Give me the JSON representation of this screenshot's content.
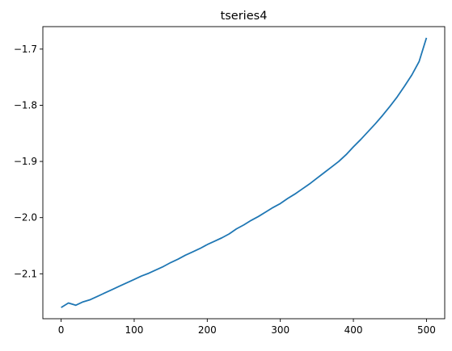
{
  "chart_data": {
    "type": "line",
    "title": "tseries4",
    "xlabel": "",
    "ylabel": "",
    "xlim": [
      -25,
      525
    ],
    "ylim": [
      -2.18,
      -1.66
    ],
    "xticks": [
      0,
      100,
      200,
      300,
      400,
      500
    ],
    "xtick_labels": [
      "0",
      "100",
      "200",
      "300",
      "400",
      "500"
    ],
    "yticks": [
      -2.1,
      -2.0,
      -1.9,
      -1.8,
      -1.7
    ],
    "ytick_labels": [
      "−2.1",
      "−2.0",
      "−1.9",
      "−1.8",
      "−1.7"
    ],
    "grid": false,
    "series": [
      {
        "color": "#1f77b4",
        "x": [
          0,
          10,
          20,
          30,
          40,
          50,
          60,
          70,
          80,
          90,
          100,
          110,
          120,
          130,
          140,
          150,
          160,
          170,
          180,
          190,
          200,
          210,
          220,
          230,
          240,
          250,
          260,
          270,
          280,
          290,
          300,
          310,
          320,
          330,
          340,
          350,
          360,
          370,
          380,
          390,
          400,
          410,
          420,
          430,
          440,
          450,
          460,
          470,
          480,
          490,
          500
        ],
        "values": [
          -2.16,
          -2.152,
          -2.156,
          -2.15,
          -2.146,
          -2.14,
          -2.134,
          -2.128,
          -2.122,
          -2.116,
          -2.11,
          -2.104,
          -2.099,
          -2.093,
          -2.087,
          -2.08,
          -2.074,
          -2.067,
          -2.061,
          -2.055,
          -2.048,
          -2.042,
          -2.036,
          -2.029,
          -2.02,
          -2.013,
          -2.005,
          -1.998,
          -1.99,
          -1.982,
          -1.975,
          -1.966,
          -1.958,
          -1.949,
          -1.94,
          -1.93,
          -1.92,
          -1.91,
          -1.9,
          -1.888,
          -1.874,
          -1.861,
          -1.847,
          -1.833,
          -1.818,
          -1.802,
          -1.785,
          -1.766,
          -1.746,
          -1.722,
          -1.68
        ]
      }
    ]
  }
}
